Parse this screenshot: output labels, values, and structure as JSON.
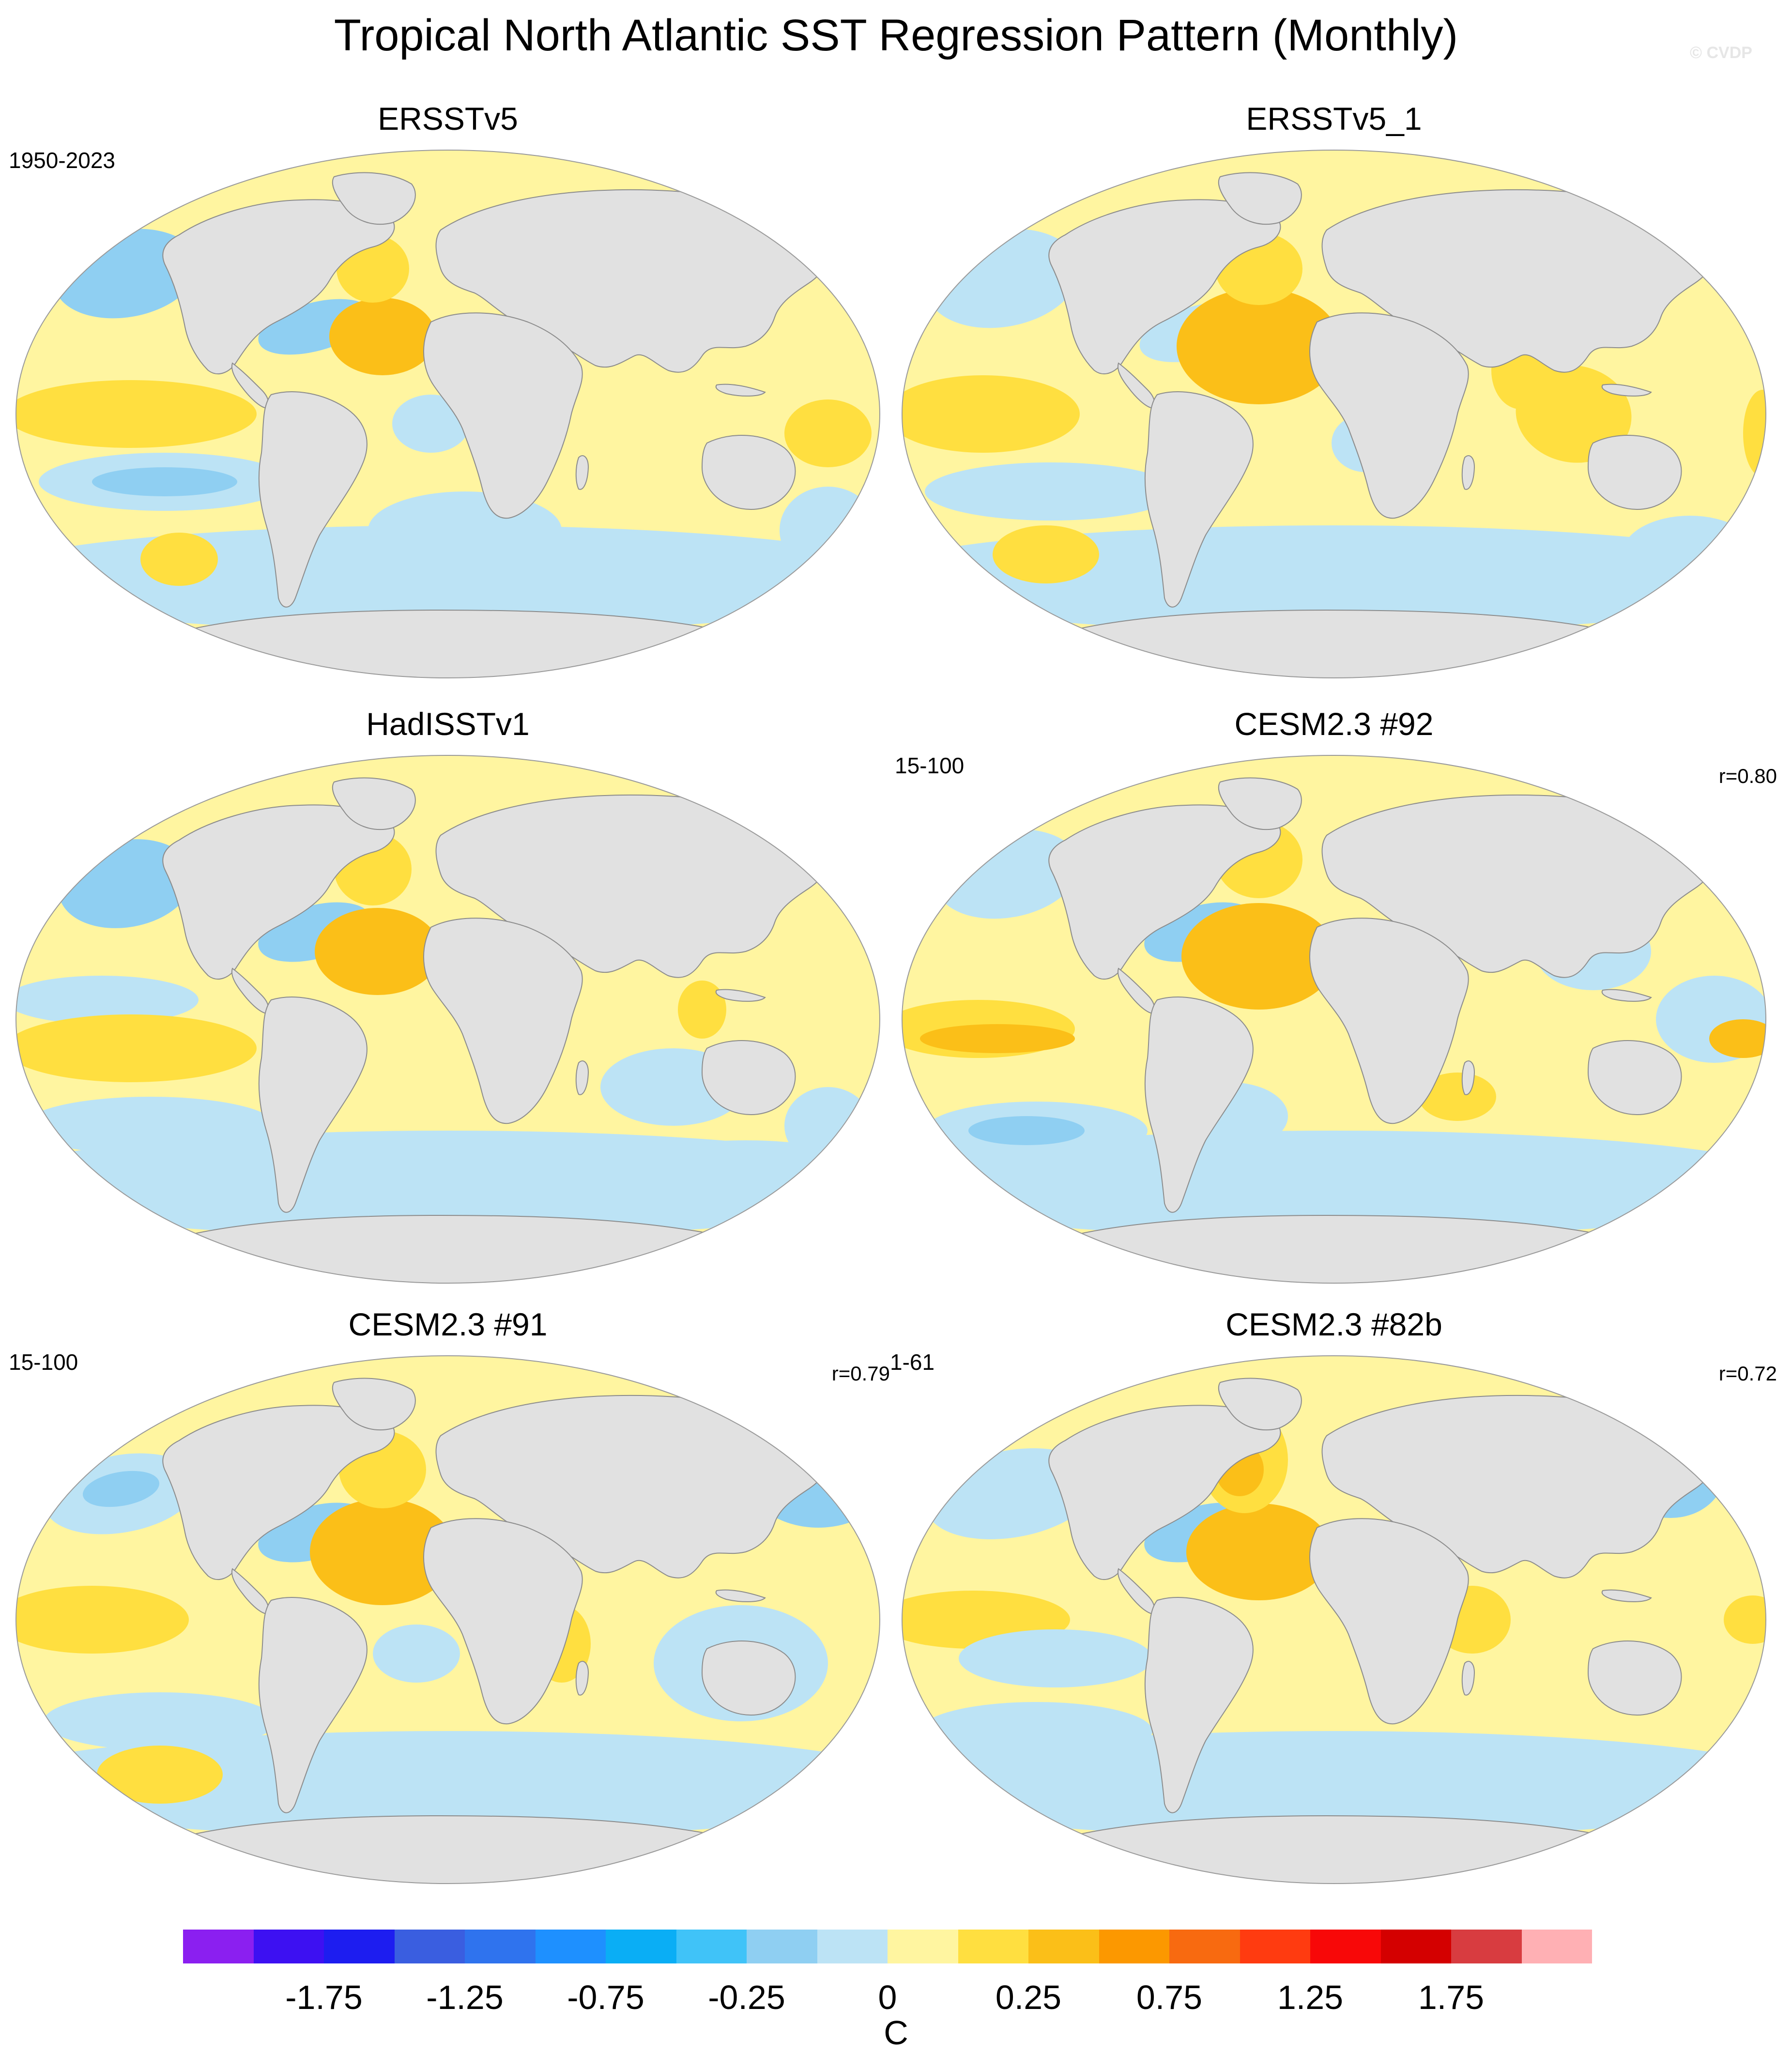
{
  "figure": {
    "title": "Tropical North Atlantic SST Regression Pattern (Monthly)",
    "watermark": "© CVDP"
  },
  "panels": [
    {
      "title": "ERSSTv5",
      "period": "1950-2023",
      "corr": "",
      "variant": "obs-a"
    },
    {
      "title": "ERSSTv5_1",
      "period": "",
      "corr": "",
      "variant": "obs-b"
    },
    {
      "title": "HadISSTv1",
      "period": "",
      "corr": "",
      "variant": "obs-c"
    },
    {
      "title": "CESM2.3 #92",
      "period": "15-100",
      "corr": "r=0.80",
      "variant": "model-a"
    },
    {
      "title": "CESM2.3 #91",
      "period": "15-100",
      "corr": "r=0.79",
      "variant": "model-b"
    },
    {
      "title": "CESM2.3 #82b",
      "period": "1-61",
      "corr": "r=0.72",
      "variant": "model-c"
    }
  ],
  "colorbar": {
    "units": "C",
    "colors": [
      "#8b1ff0",
      "#3d10f2",
      "#1d1df0",
      "#3a5ee0",
      "#2f73ee",
      "#1e90ff",
      "#0aaef5",
      "#40c3f8",
      "#8fcff2",
      "#bce3f5",
      "#fff5a0",
      "#ffdf40",
      "#fbbf18",
      "#fc9800",
      "#f86a10",
      "#ff3b10",
      "#f80808",
      "#d40000",
      "#d83c40",
      "#ffb0b4"
    ],
    "tick_labels": [
      "-1.75",
      "-1.25",
      "-0.75",
      "-0.25",
      "0",
      "0.25",
      "0.75",
      "1.25",
      "1.75"
    ]
  },
  "palette": {
    "land": "#e1e1e1",
    "coast": "#8c8c8c",
    "neutral_pos": "#fff5a0",
    "weak_neg": "#bce3f5",
    "mid_neg": "#8fcff2",
    "strong_neg": "#40c3f8",
    "weak_pos": "#ffdf40",
    "mid_pos": "#fbbf18",
    "strong_pos": "#fc9800"
  }
}
